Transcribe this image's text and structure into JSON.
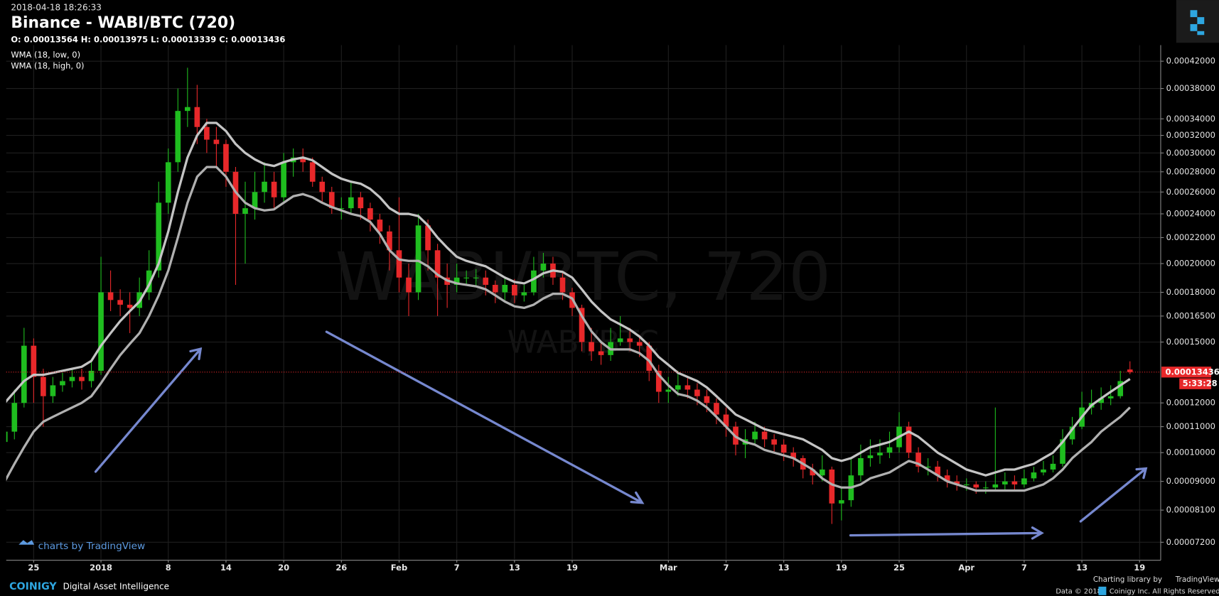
{
  "timestamp": "2018-04-18 18:26:33",
  "ohlc_line": "O: 0.00013564 H: 0.00013975 L: 0.00013339 C: 0.00013436",
  "countdown": "5:33:28",
  "watermark": "WABI/BTC, 720",
  "watermark_sub": "WABI/BTC",
  "branding": {
    "tradingview": "charts by TradingView",
    "coinigy": "COINIGY",
    "tagline": "Digital Asset Intelligence",
    "library": "Charting library by",
    "library_name": "TradingView",
    "data_credit": "Data © 2018",
    "rights": "Coinigy Inc. All Rights Reserved."
  },
  "chart_data": {
    "type": "candlestick",
    "title": "Binance - WABI/BTC (720)",
    "log_scale": true,
    "grid": true,
    "up_color": "#1fbd1f",
    "down_color": "#e8282a",
    "categories": [
      null,
      null,
      null,
      "25",
      null,
      null,
      null,
      null,
      null,
      null,
      "2018",
      null,
      null,
      null,
      null,
      null,
      null,
      "8",
      null,
      null,
      null,
      null,
      null,
      "14",
      null,
      null,
      null,
      null,
      null,
      "20",
      null,
      null,
      null,
      null,
      null,
      "26",
      null,
      null,
      null,
      null,
      null,
      "Feb",
      null,
      null,
      null,
      null,
      null,
      "7",
      null,
      null,
      null,
      null,
      null,
      "13",
      null,
      null,
      null,
      null,
      null,
      "19",
      null,
      null,
      null,
      null,
      null,
      null,
      null,
      null,
      null,
      "Mar",
      null,
      null,
      null,
      null,
      null,
      "7",
      null,
      null,
      null,
      null,
      null,
      "13",
      null,
      null,
      null,
      null,
      null,
      "19",
      null,
      null,
      null,
      null,
      null,
      "25",
      null,
      null,
      null,
      null,
      null,
      null,
      "Apr",
      null,
      null,
      null,
      null,
      null,
      "7",
      null,
      null,
      null,
      null,
      null,
      "13",
      null,
      null,
      null,
      null,
      null,
      "19"
    ],
    "open": [
      0.000104,
      0.000108,
      0.00012,
      0.000148,
      0.000132,
      0.000123,
      0.000128,
      0.00013,
      0.000132,
      0.00013,
      0.000135,
      0.00018,
      0.000175,
      0.000172,
      0.00017,
      0.00018,
      0.000195,
      0.00025,
      0.00029,
      0.00035,
      0.000355,
      0.00033,
      0.000315,
      0.00031,
      0.00028,
      0.00024,
      0.000245,
      0.00026,
      0.00027,
      0.000255,
      0.00029,
      0.000295,
      0.00029,
      0.00027,
      0.00026,
      0.000245,
      0.000245,
      0.000255,
      0.000245,
      0.000235,
      0.000225,
      0.00021,
      0.00019,
      0.00018,
      0.00023,
      0.00021,
      0.00019,
      0.000185,
      0.00019,
      0.00019,
      0.00019,
      0.000185,
      0.00018,
      0.000185,
      0.000178,
      0.00018,
      0.000195,
      0.0002,
      0.00019,
      0.00018,
      0.00017,
      0.00015,
      0.000145,
      0.000143,
      0.00015,
      0.000152,
      0.00015,
      0.000148,
      0.000135,
      0.000125,
      0.000126,
      0.000128,
      0.000126,
      0.000123,
      0.00012,
      0.000115,
      0.00011,
      0.000103,
      0.000105,
      0.000108,
      0.000105,
      0.000103,
      0.0001,
      9.8e-05,
      9.4e-05,
      9.2e-05,
      9.4e-05,
      8.3e-05,
      8.4e-05,
      9.2e-05,
      9.8e-05,
      9.9e-05,
      0.0001,
      0.000102,
      0.00011,
      0.0001,
      9.5e-05,
      9.5e-05,
      9.2e-05,
      9e-05,
      8.9e-05,
      8.9e-05,
      8.8e-05,
      8.8e-05,
      8.9e-05,
      9e-05,
      8.9e-05,
      9.1e-05,
      9.3e-05,
      9.4e-05,
      9.6e-05,
      0.000105,
      0.00011,
      0.000118,
      0.00012,
      0.000122,
      0.000123,
      0.00013564,
      null
    ],
    "high": [
      0.000112,
      0.000126,
      0.000158,
      0.000152,
      0.000136,
      0.000132,
      0.000134,
      0.000136,
      0.000136,
      0.00014,
      0.000205,
      0.000195,
      0.000182,
      0.00018,
      0.00019,
      0.00021,
      0.00027,
      0.000305,
      0.00038,
      0.00041,
      0.000385,
      0.00034,
      0.00033,
      0.000315,
      0.000285,
      0.00027,
      0.00028,
      0.00029,
      0.00028,
      0.0003,
      0.000305,
      0.000305,
      0.000295,
      0.000275,
      0.000265,
      0.000255,
      0.00027,
      0.00026,
      0.00025,
      0.00024,
      0.00023,
      0.000255,
      0.0002,
      0.00024,
      0.000235,
      0.000215,
      0.0002,
      0.0002,
      0.000195,
      0.000196,
      0.000195,
      0.000188,
      0.00019,
      0.000189,
      0.000185,
      0.000205,
      0.000208,
      0.000205,
      0.000193,
      0.000183,
      0.000172,
      0.000158,
      0.00015,
      0.000158,
      0.000165,
      0.000158,
      0.000154,
      0.00015,
      0.000138,
      0.000132,
      0.000135,
      0.000132,
      0.000129,
      0.000126,
      0.000122,
      0.000118,
      0.000112,
      0.000109,
      0.000112,
      0.00011,
      0.000107,
      0.000105,
      0.000102,
      9.9e-05,
      9.6e-05,
      9.9e-05,
      9.5e-05,
      8.8e-05,
      9.8e-05,
      0.000103,
      0.000105,
      0.000105,
      0.000108,
      0.000116,
      0.000112,
      0.000102,
      9.8e-05,
      9.7e-05,
      9.4e-05,
      9.2e-05,
      9.1e-05,
      9e-05,
      9e-05,
      0.000118,
      9.3e-05,
      9.2e-05,
      9.4e-05,
      9.5e-05,
      9.7e-05,
      9.9e-05,
      0.000109,
      0.000114,
      0.000125,
      0.000126,
      0.000127,
      0.000128,
      0.000135,
      0.00013975,
      null
    ],
    "low": [
      9.9e-05,
      0.000105,
      0.000118,
      0.00012,
      0.00011,
      0.00012,
      0.000125,
      0.000127,
      0.000126,
      0.000127,
      0.000133,
      0.000168,
      0.000165,
      0.000155,
      0.000165,
      0.000175,
      0.00019,
      0.00024,
      0.00028,
      0.00033,
      0.00031,
      0.0003,
      0.000285,
      0.000265,
      0.000185,
      0.0002,
      0.000235,
      0.00025,
      0.000245,
      0.00025,
      0.000275,
      0.00028,
      0.000265,
      0.00025,
      0.00024,
      0.000235,
      0.00024,
      0.000235,
      0.000225,
      0.000215,
      0.000195,
      0.00018,
      0.000165,
      0.000175,
      0.000195,
      0.000165,
      0.00017,
      0.00018,
      0.000185,
      0.000184,
      0.000178,
      0.000173,
      0.000175,
      0.000173,
      0.000174,
      0.000178,
      0.00019,
      0.000185,
      0.000175,
      0.000165,
      0.000145,
      0.00014,
      0.000138,
      0.00014,
      0.000148,
      0.000145,
      0.000142,
      0.00013,
      0.00012,
      0.00012,
      0.000123,
      0.000122,
      0.000119,
      0.000116,
      0.000111,
      0.000106,
      9.9e-05,
      9.8e-05,
      0.000103,
      0.000102,
      0.0001,
      9.7e-05,
      9.5e-05,
      9.1e-05,
      8.9e-05,
      9e-05,
      7.7e-05,
      7.8e-05,
      8.2e-05,
      9e-05,
      9.5e-05,
      9.6e-05,
      9.8e-05,
      0.0001,
      9.8e-05,
      9.3e-05,
      9.2e-05,
      9e-05,
      8.8e-05,
      8.7e-05,
      8.7e-05,
      8.6e-05,
      8.6e-05,
      8.7e-05,
      8.7e-05,
      8.7e-05,
      8.8e-05,
      9e-05,
      9.2e-05,
      9.3e-05,
      9.5e-05,
      0.000103,
      0.000109,
      0.000115,
      0.000117,
      0.000119,
      0.000122,
      0.00013339,
      null
    ],
    "close": [
      0.000108,
      0.00012,
      0.000148,
      0.000132,
      0.000123,
      0.000128,
      0.00013,
      0.000132,
      0.00013,
      0.000135,
      0.00018,
      0.000175,
      0.000172,
      0.00017,
      0.00018,
      0.000195,
      0.00025,
      0.00029,
      0.00035,
      0.000355,
      0.00033,
      0.000315,
      0.00031,
      0.00028,
      0.00024,
      0.000245,
      0.00026,
      0.00027,
      0.000255,
      0.00029,
      0.000295,
      0.00029,
      0.00027,
      0.00026,
      0.000245,
      0.000245,
      0.000255,
      0.000245,
      0.000235,
      0.000225,
      0.00021,
      0.00019,
      0.00018,
      0.00023,
      0.00021,
      0.00019,
      0.000185,
      0.00019,
      0.00019,
      0.00019,
      0.000185,
      0.00018,
      0.000185,
      0.000178,
      0.00018,
      0.000195,
      0.0002,
      0.00019,
      0.00018,
      0.00017,
      0.00015,
      0.000145,
      0.000143,
      0.00015,
      0.000152,
      0.00015,
      0.000148,
      0.000135,
      0.000125,
      0.000126,
      0.000128,
      0.000126,
      0.000123,
      0.00012,
      0.000115,
      0.00011,
      0.000103,
      0.000105,
      0.000108,
      0.000105,
      0.000103,
      0.0001,
      9.8e-05,
      9.4e-05,
      9.2e-05,
      9.4e-05,
      8.3e-05,
      8.4e-05,
      9.2e-05,
      9.8e-05,
      9.9e-05,
      0.0001,
      0.000102,
      0.00011,
      0.0001,
      9.5e-05,
      9.5e-05,
      9.2e-05,
      9e-05,
      8.9e-05,
      8.9e-05,
      8.8e-05,
      8.8e-05,
      8.9e-05,
      9e-05,
      8.9e-05,
      9.1e-05,
      9.3e-05,
      9.4e-05,
      9.6e-05,
      0.000105,
      0.00011,
      0.000118,
      0.00012,
      0.000122,
      0.000123,
      0.00013,
      0.00013436,
      null
    ],
    "series": [
      {
        "name": "WMA (18, low, 0)",
        "color": "#b0b0b0",
        "values": [
          9e-05,
          9.6e-05,
          0.000102,
          0.000108,
          0.000112,
          0.000114,
          0.000116,
          0.000118,
          0.00012,
          0.000123,
          0.000129,
          0.000136,
          0.000143,
          0.000149,
          0.000155,
          0.000165,
          0.000178,
          0.000195,
          0.00022,
          0.00025,
          0.000275,
          0.000285,
          0.000285,
          0.000275,
          0.00026,
          0.00025,
          0.000245,
          0.000243,
          0.000244,
          0.00025,
          0.000256,
          0.000258,
          0.000255,
          0.00025,
          0.000246,
          0.000243,
          0.00024,
          0.000238,
          0.000233,
          0.000223,
          0.00021,
          0.000203,
          0.000202,
          0.000202,
          0.000198,
          0.000192,
          0.000188,
          0.000186,
          0.000185,
          0.000184,
          0.000182,
          0.000178,
          0.000174,
          0.000171,
          0.00017,
          0.000172,
          0.000176,
          0.000179,
          0.000179,
          0.000176,
          0.000165,
          0.000156,
          0.00015,
          0.000146,
          0.000146,
          0.000146,
          0.000144,
          0.00014,
          0.000133,
          0.000128,
          0.000124,
          0.000123,
          0.000121,
          0.000118,
          0.000114,
          0.00011,
          0.000106,
          0.000104,
          0.000103,
          0.000101,
          0.0001,
          9.9e-05,
          9.8e-05,
          9.6e-05,
          9.4e-05,
          9.1e-05,
          8.9e-05,
          8.8e-05,
          8.8e-05,
          8.9e-05,
          9.1e-05,
          9.2e-05,
          9.3e-05,
          9.5e-05,
          9.7e-05,
          9.6e-05,
          9.4e-05,
          9.2e-05,
          9e-05,
          8.9e-05,
          8.8e-05,
          8.7e-05,
          8.7e-05,
          8.7e-05,
          8.7e-05,
          8.7e-05,
          8.7e-05,
          8.8e-05,
          8.9e-05,
          9.1e-05,
          9.4e-05,
          9.8e-05,
          0.000101,
          0.000104,
          0.000108,
          0.000111,
          0.000114,
          0.000118,
          null
        ]
      },
      {
        "name": "WMA (18, high, 0)",
        "color": "#c4c4c4",
        "values": [
          0.00012,
          0.000125,
          0.00013,
          0.000133,
          0.000133,
          0.000134,
          0.000135,
          0.000136,
          0.000137,
          0.00014,
          0.000148,
          0.000155,
          0.000162,
          0.000168,
          0.000174,
          0.000185,
          0.0002,
          0.000225,
          0.00026,
          0.000295,
          0.00032,
          0.000335,
          0.000335,
          0.000325,
          0.00031,
          0.0003,
          0.000293,
          0.000288,
          0.000286,
          0.00029,
          0.000293,
          0.000295,
          0.000292,
          0.000285,
          0.000278,
          0.000273,
          0.00027,
          0.000268,
          0.000263,
          0.000255,
          0.000245,
          0.00024,
          0.00024,
          0.000238,
          0.00023,
          0.00022,
          0.000212,
          0.000205,
          0.000202,
          0.0002,
          0.000198,
          0.000194,
          0.00019,
          0.000187,
          0.000186,
          0.000189,
          0.000193,
          0.000195,
          0.000194,
          0.00019,
          0.000182,
          0.000174,
          0.000168,
          0.000163,
          0.00016,
          0.000157,
          0.000153,
          0.000148,
          0.000142,
          0.000138,
          0.000134,
          0.000132,
          0.00013,
          0.000127,
          0.000123,
          0.000119,
          0.000115,
          0.000113,
          0.000111,
          0.000109,
          0.000108,
          0.000107,
          0.000106,
          0.000105,
          0.000103,
          0.000101,
          9.8e-05,
          9.7e-05,
          9.8e-05,
          0.0001,
          0.000102,
          0.000103,
          0.000104,
          0.000106,
          0.000108,
          0.000106,
          0.000103,
          0.0001,
          9.8e-05,
          9.6e-05,
          9.4e-05,
          9.3e-05,
          9.2e-05,
          9.3e-05,
          9.4e-05,
          9.4e-05,
          9.5e-05,
          9.6e-05,
          9.8e-05,
          0.0001,
          0.000104,
          0.000109,
          0.000114,
          0.000119,
          0.000122,
          0.000125,
          0.000128,
          0.000131,
          null
        ]
      }
    ],
    "ylim": [
      6.76e-05,
      0.000443
    ],
    "yticks": [
      {
        "value": 7.2e-05,
        "label": "0.00007200"
      },
      {
        "value": 8.1e-05,
        "label": "0.00008100"
      },
      {
        "value": 9e-05,
        "label": "0.00009000"
      },
      {
        "value": 0.0001,
        "label": "0.00010000"
      },
      {
        "value": 0.00011,
        "label": "0.00011000"
      },
      {
        "value": 0.00012,
        "label": "0.00012000"
      },
      {
        "value": 0.00015,
        "label": "0.00015000"
      },
      {
        "value": 0.000165,
        "label": "0.00016500"
      },
      {
        "value": 0.00018,
        "label": "0.00018000"
      },
      {
        "value": 0.0002,
        "label": "0.00020000"
      },
      {
        "value": 0.00022,
        "label": "0.00022000"
      },
      {
        "value": 0.00024,
        "label": "0.00024000"
      },
      {
        "value": 0.00026,
        "label": "0.00026000"
      },
      {
        "value": 0.00028,
        "label": "0.00028000"
      },
      {
        "value": 0.0003,
        "label": "0.00030000"
      },
      {
        "value": 0.00032,
        "label": "0.00032000"
      },
      {
        "value": 0.00034,
        "label": "0.00034000"
      },
      {
        "value": 0.00038,
        "label": "0.00038000"
      },
      {
        "value": 0.00042,
        "label": "0.00042000"
      }
    ],
    "price_line_color": "#e8282a"
  }
}
